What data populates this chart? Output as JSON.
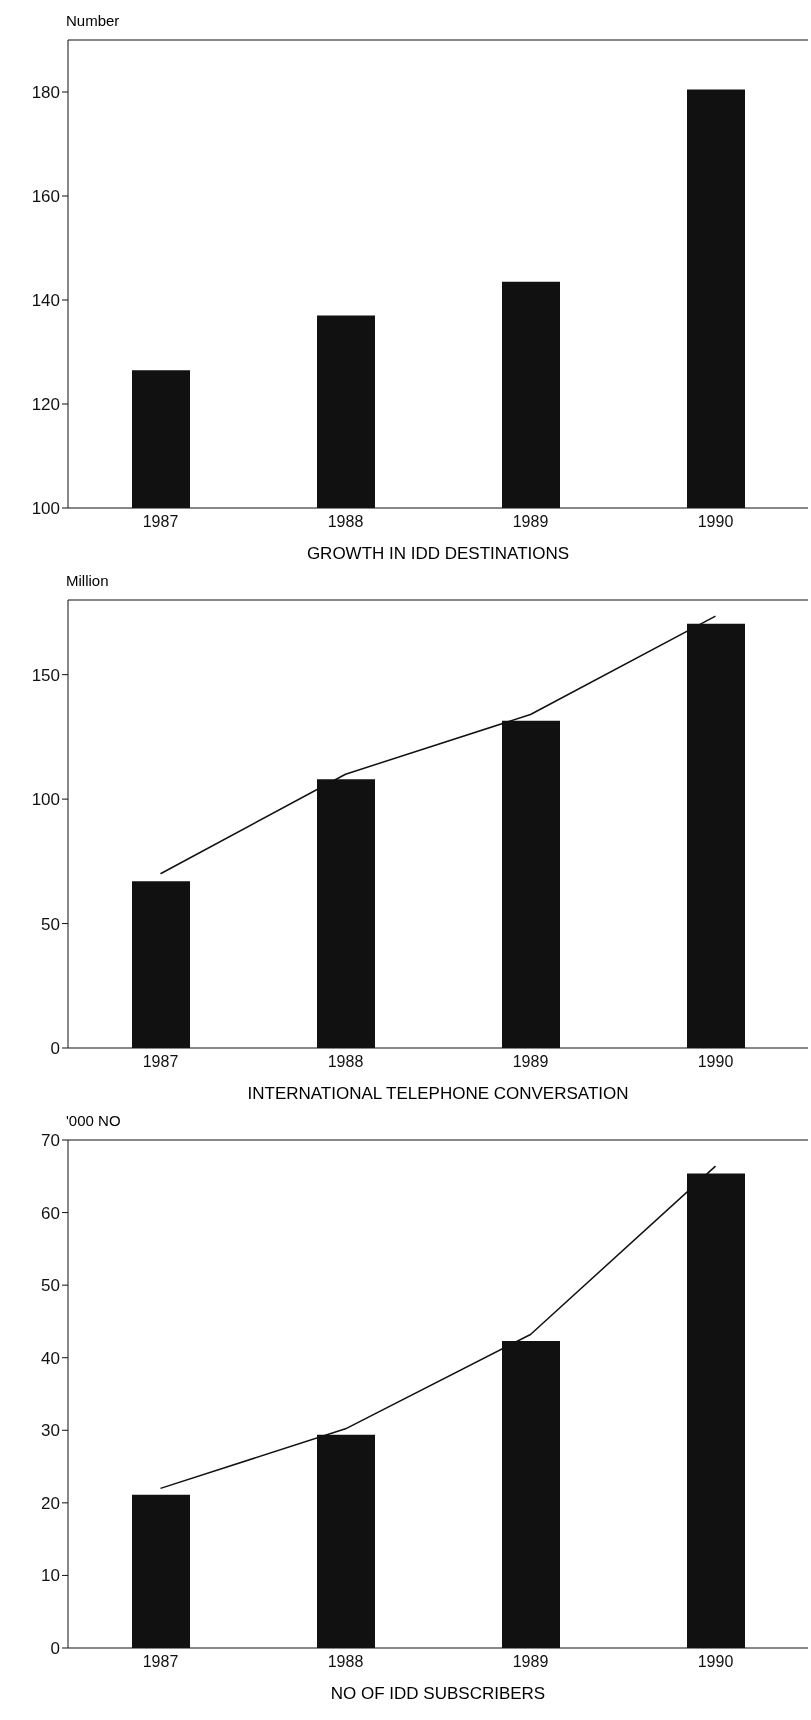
{
  "chart_data": [
    {
      "type": "bar",
      "ylabel": "Number",
      "xlabel": "GROWTH IN IDD DESTINATIONS",
      "categories": [
        "1987",
        "1988",
        "1989",
        "1990"
      ],
      "series": [
        {
          "color": "#111111",
          "values": [
            126.5,
            137,
            143.5,
            180.5
          ]
        }
      ],
      "ylim": [
        100,
        190
      ],
      "yticks": [
        100,
        120,
        140,
        160,
        180
      ],
      "grid": false,
      "legend": false
    },
    {
      "type": "bar",
      "ylabel": "Million",
      "xlabel": "INTERNATIONAL TELEPHONE CONVERSATION",
      "categories": [
        "1987",
        "1988",
        "1989",
        "1990"
      ],
      "series": [
        {
          "color": "#111111",
          "values": [
            67,
            108,
            131.5,
            170.5
          ]
        },
        {
          "type": "line",
          "color": "#111111",
          "values": [
            70,
            110,
            134,
            173.5
          ]
        }
      ],
      "ylim": [
        0,
        180
      ],
      "yticks": [
        0,
        50,
        100,
        150
      ],
      "grid": false,
      "legend": false,
      "marker": "none",
      "line_style": "solid"
    },
    {
      "type": "bar",
      "ylabel": "'000 NO",
      "xlabel": "NO OF IDD SUBSCRIBERS",
      "categories": [
        "1987",
        "1988",
        "1989",
        "1990"
      ],
      "series": [
        {
          "color": "#111111",
          "values": [
            21.1,
            29.4,
            42.3,
            65.4
          ]
        },
        {
          "type": "line",
          "color": "#111111",
          "values": [
            22,
            30.2,
            43.2,
            66.4
          ]
        }
      ],
      "ylim": [
        0,
        70
      ],
      "yticks": [
        0,
        10,
        20,
        30,
        40,
        50,
        60,
        70
      ],
      "grid": false,
      "legend": false,
      "marker": "none",
      "line_style": "solid"
    }
  ]
}
